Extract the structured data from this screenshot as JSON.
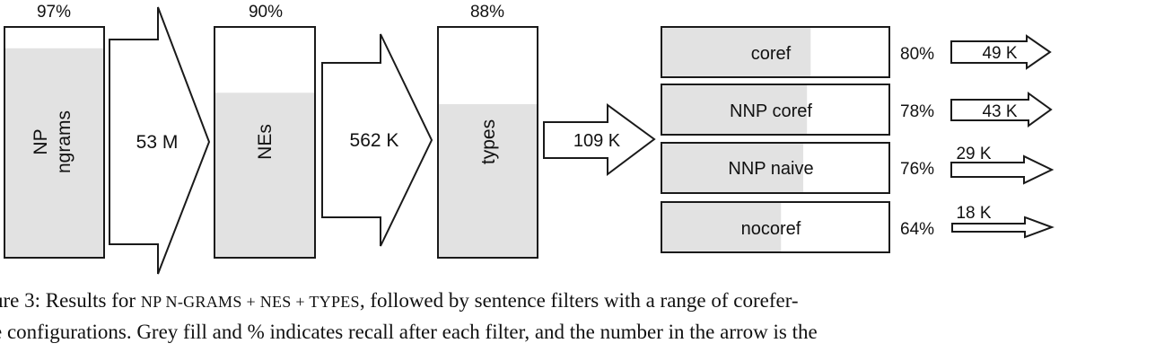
{
  "colors": {
    "fill": "#e2e2e2",
    "stroke": "#1a1a1a",
    "background": "#ffffff"
  },
  "stages": [
    {
      "id": "np-ngrams",
      "recall": 0.97,
      "recall_label": "97%",
      "label_lines": [
        "NP",
        "ngrams"
      ]
    },
    {
      "id": "nes",
      "recall": 0.9,
      "recall_label": "90%",
      "label_lines": [
        "NEs"
      ]
    },
    {
      "id": "types",
      "recall": 0.88,
      "recall_label": "88%",
      "label_lines": [
        "types"
      ]
    }
  ],
  "stage_arrows": [
    {
      "id": "arrow-53m",
      "label": "53 M"
    },
    {
      "id": "arrow-562k",
      "label": "562 K"
    },
    {
      "id": "arrow-109k",
      "label": "109 K"
    }
  ],
  "filters": [
    {
      "id": "coref",
      "label": "coref",
      "recall": 0.8,
      "recall_label": "80%",
      "count": "49 K"
    },
    {
      "id": "nnp-coref",
      "label": "NNP coref",
      "recall": 0.78,
      "recall_label": "78%",
      "count": "43 K"
    },
    {
      "id": "nnp-naive",
      "label": "NNP naive",
      "recall": 0.76,
      "recall_label": "76%",
      "count": "29 K"
    },
    {
      "id": "nocoref",
      "label": "nocoref",
      "recall": 0.64,
      "recall_label": "64%",
      "count": "18 K"
    }
  ],
  "caption": {
    "line1_start": "ure 3: Results for ",
    "line1_sc": "NP N-GRAMS + NES + TYPES",
    "line1_end": ", followed by sentence filters with a range of corefer-",
    "line2": "e configurations. Grey fill and % indicates recall after each filter, and the number in the arrow is the"
  }
}
